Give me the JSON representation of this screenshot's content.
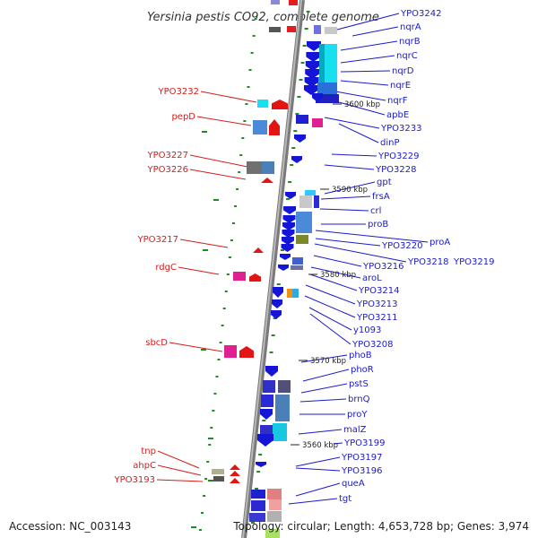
{
  "title": "Yersinia pestis CO92, complete genome",
  "footer": {
    "accession": "Accession: NC_003143",
    "topology": "Topology: circular; Length: 4,653,728 bp; Genes: 3,974"
  },
  "colors": {
    "backbone": "#8c8c8c",
    "plus_strand": "#1515d8",
    "minus_strand": "#e31414",
    "label_blue": "#1a1acc",
    "label_red": "#d81b1b",
    "rna_dash": "#1e8c1e"
  },
  "scale_marks": [
    "3600 kbp",
    "3590 kbp",
    "3580 kbp",
    "3570 kbp",
    "3560 kbp"
  ],
  "right_labels": [
    "YPO3242",
    "nqrA",
    "nqrB",
    "nqrC",
    "nqrD",
    "nqrE",
    "nqrF",
    "apbE",
    "YPO3233",
    "dinP",
    "YPO3229",
    "YPO3228",
    "gpt",
    "frsA",
    "crl",
    "proB",
    "proA",
    "YPO3220",
    "YPO3218",
    "YPO3219",
    "YPO3216",
    "aroL",
    "YPO3214",
    "YPO3213",
    "YPO3211",
    "y1093",
    "YPO3208",
    "phoB",
    "phoR",
    "pstS",
    "brnQ",
    "proY",
    "malZ",
    "YPO3199",
    "YPO3197",
    "YPO3196",
    "queA",
    "tgt"
  ],
  "left_labels": [
    "YPO3232",
    "pepD",
    "YPO3227",
    "YPO3226",
    "YPO3217",
    "rdgC",
    "sbcD",
    "tnp",
    "ahpC",
    "YPO3193"
  ]
}
